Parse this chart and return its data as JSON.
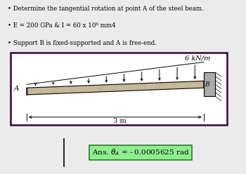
{
  "bullet1": "Determine the tangential rotation at point A of the steel beam.",
  "bullet2": "E = 200 GPa & I = 60 x 10⁶ mm4",
  "bullet3": "Support B is fixed-supported and A is free-end.",
  "ans_bg_color": "#90EE90",
  "ans_border_color": "#2d7a2d",
  "box_border_color": "#3a003a",
  "label_6kNm": "6 kN/m",
  "label_3m": "3 m",
  "label_A": "A",
  "label_B": "B",
  "bg_color": "#ebebeb"
}
